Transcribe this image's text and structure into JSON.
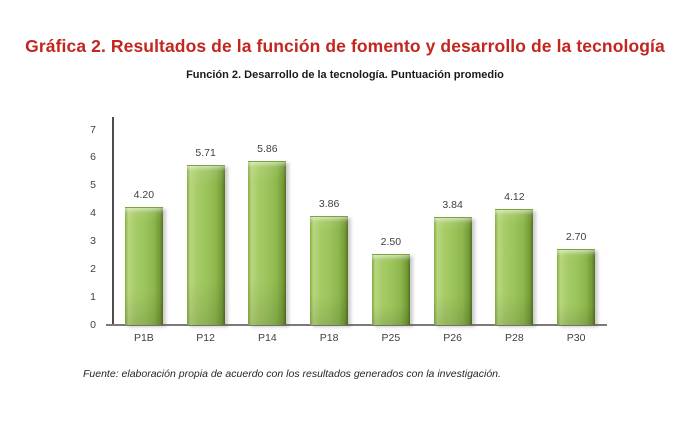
{
  "page": {
    "title": "Gráfica 2. Resultados de la función de fomento y desarrollo de la tecnología",
    "subtitle": "Función 2. Desarrollo de la tecnología. Puntuación promedio",
    "source_note": "Fuente: elaboración propia de acuerdo con los resultados generados con la investigación."
  },
  "colors": {
    "title_red": "#c3251f",
    "bar_green_main": "#9cc45c",
    "bar_green_light": "#b7d67e",
    "bar_green_dark": "#739a36",
    "bar_edge_dark": "#556f22",
    "axis_gray": "#4d4d4d",
    "baseline_gray": "#7a7a7a",
    "label_gray": "#3f3f3f"
  },
  "chart_data": {
    "type": "bar",
    "title": "Función 2. Desarrollo de la tecnología. Puntuación promedio",
    "categories": [
      "P1B",
      "P12",
      "P14",
      "P18",
      "P25",
      "P26",
      "P28",
      "P30"
    ],
    "values": [
      4.2,
      5.71,
      5.86,
      3.86,
      2.5,
      3.84,
      4.12,
      2.7
    ],
    "value_labels": [
      "4.20",
      "5.71",
      "5.86",
      "3.86",
      "2.50",
      "3.84",
      "4.12",
      "2.70"
    ],
    "xlabel": "",
    "ylabel": "",
    "ylim": [
      0,
      7
    ],
    "yticks": [
      0,
      1,
      2,
      3,
      4,
      5,
      6,
      7
    ],
    "grid": false,
    "legend": false,
    "bar_color": "#9cc45c",
    "value_label_position": "above-bar"
  }
}
